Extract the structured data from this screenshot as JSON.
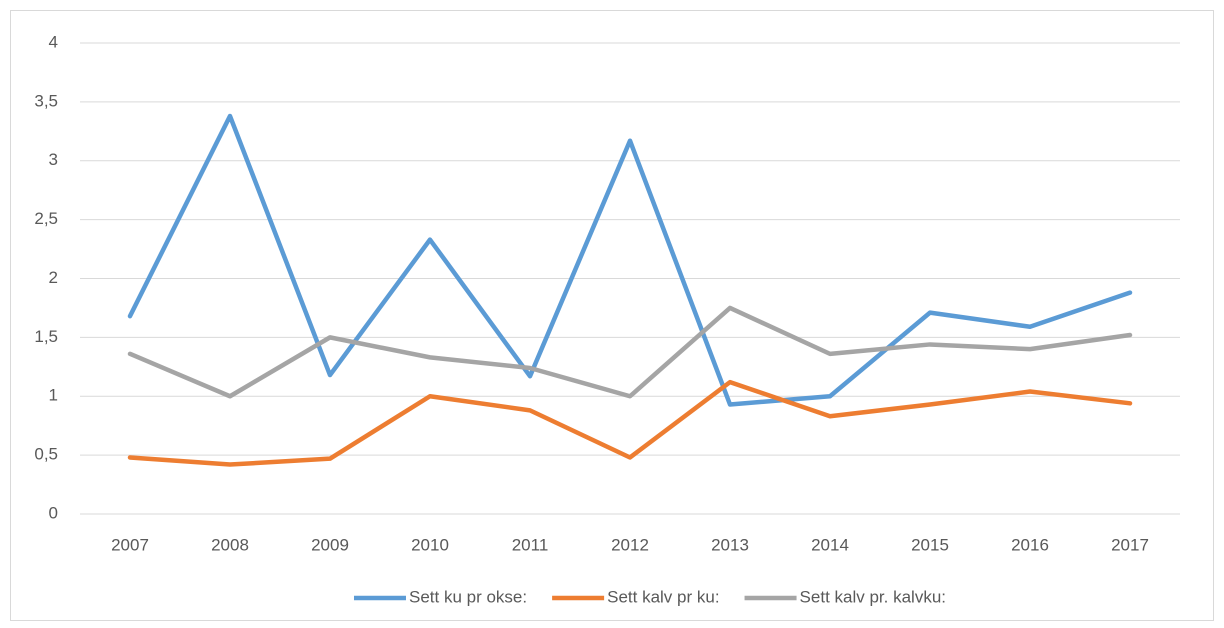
{
  "chart_data": {
    "type": "line",
    "categories": [
      "2007",
      "2008",
      "2009",
      "2010",
      "2011",
      "2012",
      "2013",
      "2014",
      "2015",
      "2016",
      "2017"
    ],
    "series": [
      {
        "name": "Sett ku pr okse:",
        "color": "#5b9bd5",
        "values": [
          1.68,
          3.38,
          1.18,
          2.33,
          1.17,
          3.17,
          0.93,
          1.0,
          1.71,
          1.59,
          1.88
        ]
      },
      {
        "name": "Sett kalv pr ku:",
        "color": "#ed7d31",
        "values": [
          0.48,
          0.42,
          0.47,
          1.0,
          0.88,
          0.48,
          1.12,
          0.83,
          0.93,
          1.04,
          0.94
        ]
      },
      {
        "name": "Sett kalv pr. kalvku:",
        "color": "#a5a5a5",
        "values": [
          1.36,
          1.0,
          1.5,
          1.33,
          1.24,
          1.0,
          1.75,
          1.36,
          1.44,
          1.4,
          1.52
        ]
      }
    ],
    "ylim": [
      0,
      4
    ],
    "yticks": [
      0,
      {
        "value": 0.5,
        "label": "0,5"
      },
      1,
      {
        "value": 1.5,
        "label": "1,5"
      },
      2,
      {
        "value": 2.5,
        "label": "2,5"
      },
      3,
      {
        "value": 3.5,
        "label": "3,5"
      },
      4
    ],
    "grid": true,
    "legend": "bottom"
  }
}
